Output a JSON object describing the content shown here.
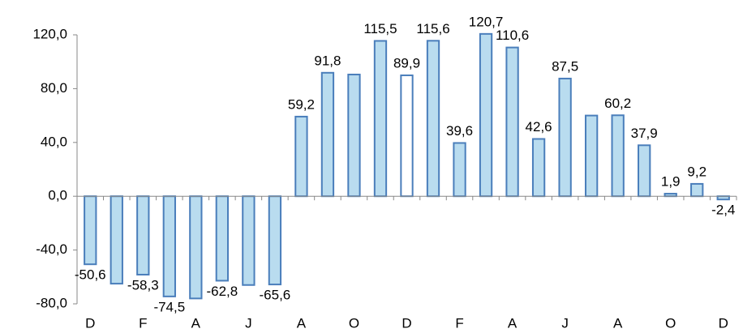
{
  "chart_data": {
    "type": "bar",
    "categories": [
      "D",
      null,
      "F",
      null,
      "A",
      null,
      "J",
      null,
      "A",
      null,
      "O",
      null,
      "D",
      null,
      "F",
      null,
      "A",
      null,
      "J",
      null,
      "A",
      null,
      "O",
      null,
      "D"
    ],
    "values": [
      -50.6,
      -65,
      -58.3,
      -74.5,
      -76,
      -62.8,
      -66,
      -65.6,
      59.2,
      91.8,
      90.5,
      115.5,
      89.9,
      115.6,
      39.6,
      120.7,
      110.6,
      42.6,
      87.5,
      60,
      60.2,
      37.9,
      1.9,
      9.2,
      -2.4
    ],
    "value_labels": [
      "-50,6",
      null,
      "-58,3",
      "-74,5",
      null,
      "-62,8",
      null,
      "-65,6",
      "59,2",
      "91,8",
      null,
      "115,5",
      "89,9",
      "115,6",
      "39,6",
      "120,7",
      "110,6",
      "42,6",
      "87,5",
      null,
      "60,2",
      "37,9",
      "1,9",
      "9,2",
      "-2,4"
    ],
    "colors": [
      "#b9dcef",
      "#b9dcef",
      "#b9dcef",
      "#b9dcef",
      "#b9dcef",
      "#b9dcef",
      "#b9dcef",
      "#b9dcef",
      "#b9dcef",
      "#b9dcef",
      "#b9dcef",
      "#b9dcef",
      "#ffffff",
      "#b9dcef",
      "#b9dcef",
      "#b9dcef",
      "#b9dcef",
      "#b9dcef",
      "#b9dcef",
      "#b9dcef",
      "#b9dcef",
      "#b9dcef",
      "#b9dcef",
      "#b9dcef",
      "#b9dcef"
    ],
    "edge_color": "#4a7ebb",
    "ylim": [
      -80,
      120
    ],
    "yticks": [
      {
        "value": -80,
        "label": "-80,0"
      },
      {
        "value": -40,
        "label": "-40,0"
      },
      {
        "value": 0,
        "label": "0,0"
      },
      {
        "value": 40,
        "label": "40,0"
      },
      {
        "value": 80,
        "label": "80,0"
      },
      {
        "value": 120,
        "label": "120,0"
      }
    ]
  }
}
